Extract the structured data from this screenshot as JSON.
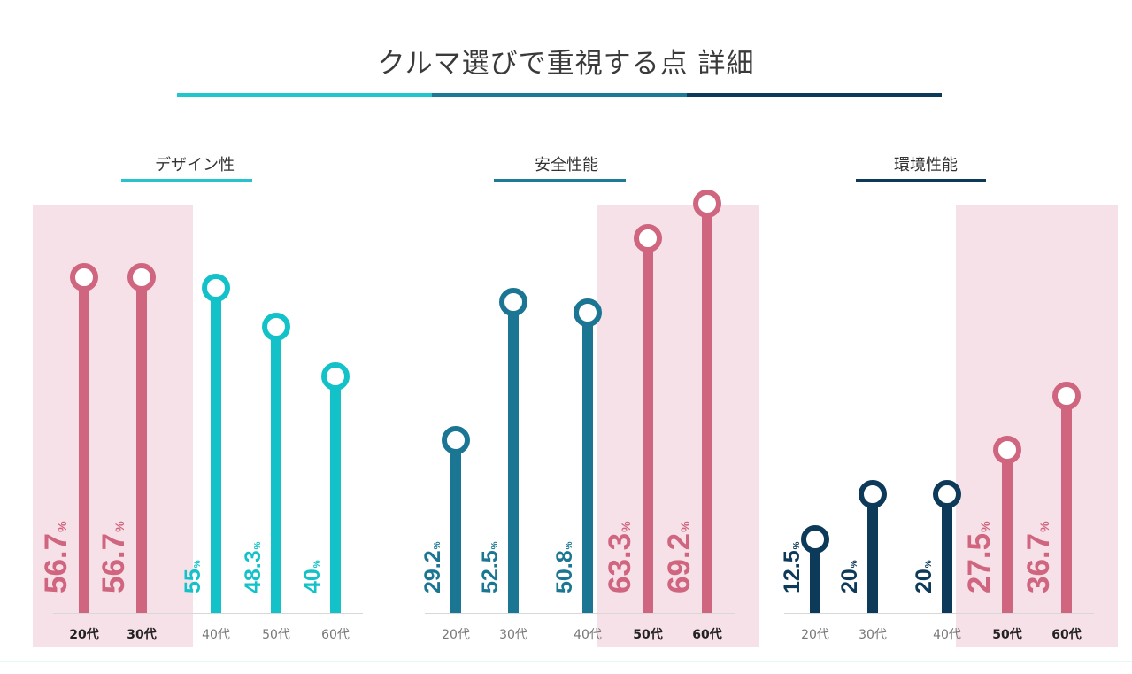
{
  "title": "クルマ選びで重視する点 詳細",
  "title_underline_colors": [
    "#1fc7cc",
    "#1b7a95",
    "#0d3a58"
  ],
  "highlight_color": "#f7e1e8",
  "chart_data": [
    {
      "type": "lollipop",
      "title": "デザイン性",
      "unit": "%",
      "categories": [
        "20代",
        "30代",
        "40代",
        "50代",
        "60代"
      ],
      "values": [
        56.7,
        56.7,
        55,
        48.3,
        40
      ],
      "value_labels": [
        "56.7",
        "56.7",
        "55",
        "48.3",
        "40"
      ],
      "highlighted": [
        true,
        true,
        false,
        false,
        false
      ],
      "series_color": "#13c2c8",
      "highlight_series_color": "#d0657f",
      "underline_color": "#27c3cc",
      "ylim": [
        0,
        75
      ]
    },
    {
      "type": "lollipop",
      "title": "安全性能",
      "unit": "%",
      "categories": [
        "20代",
        "30代",
        "40代",
        "50代",
        "60代"
      ],
      "values": [
        29.2,
        52.5,
        50.8,
        63.3,
        69.2
      ],
      "value_labels": [
        "29.2",
        "52.5",
        "50.8",
        "63.3",
        "69.2"
      ],
      "highlighted": [
        false,
        false,
        false,
        true,
        true
      ],
      "series_color": "#1b7693",
      "highlight_series_color": "#d0657f",
      "underline_color": "#1f7a98",
      "ylim": [
        0,
        75
      ]
    },
    {
      "type": "lollipop",
      "title": "環境性能",
      "unit": "%",
      "categories": [
        "20代",
        "30代",
        "40代",
        "50代",
        "60代"
      ],
      "values": [
        12.5,
        20,
        20,
        27.5,
        36.7
      ],
      "value_labels": [
        "12.5",
        "20",
        "20",
        "27.5",
        "36.7"
      ],
      "highlighted": [
        false,
        false,
        false,
        true,
        true
      ],
      "series_color": "#0d3a58",
      "highlight_series_color": "#d0657f",
      "underline_color": "#0e3a59",
      "ylim": [
        0,
        75
      ]
    }
  ]
}
